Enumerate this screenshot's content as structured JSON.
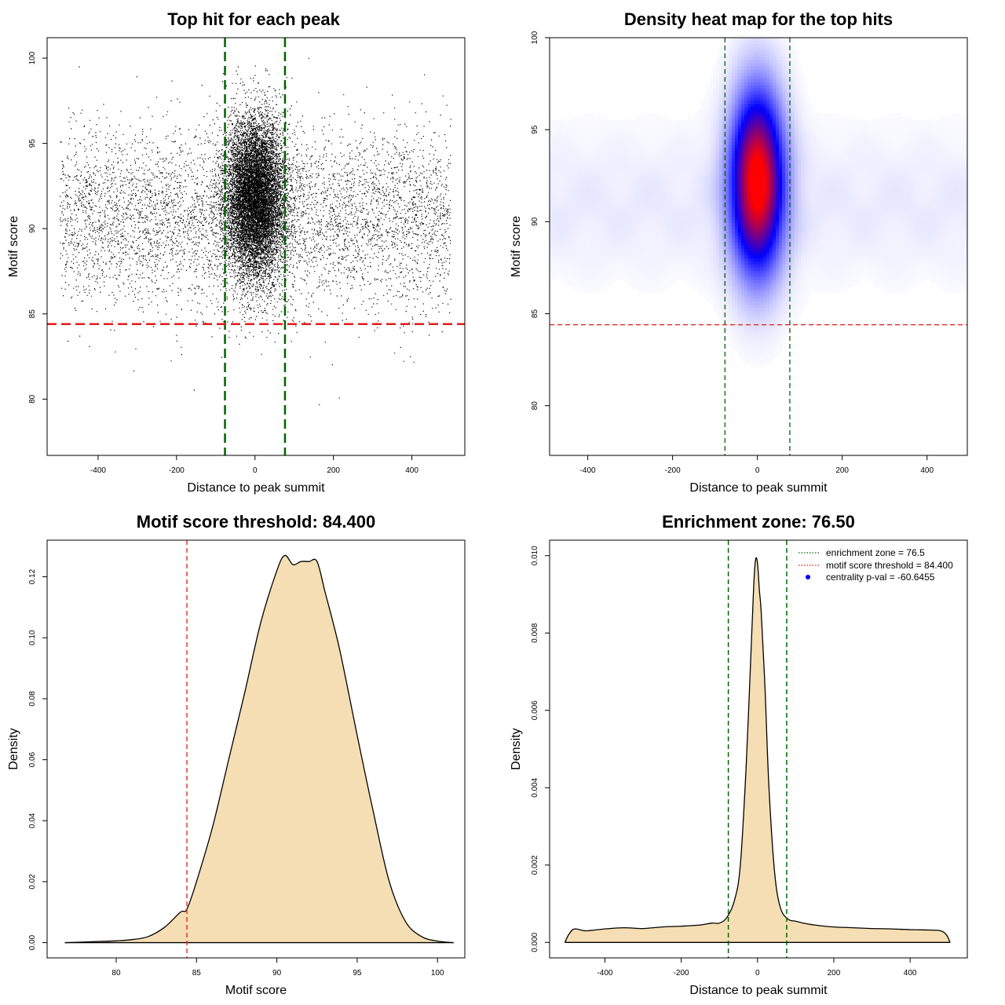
{
  "chart_data": [
    {
      "id": "scatter",
      "type": "scatter",
      "title": "Top hit for each peak",
      "xlabel": "Distance to peak summit",
      "ylabel": "Motif score",
      "xlim": [
        -530,
        535
      ],
      "ylim": [
        76.7,
        101.2
      ],
      "xticks": [
        -400,
        -200,
        0,
        200,
        400
      ],
      "yticks": [
        80,
        85,
        90,
        95,
        100
      ],
      "xtick_labels": [
        "-400",
        "-200",
        "0",
        "200",
        "400"
      ],
      "ytick_labels": [
        "80",
        "85",
        "90",
        "95",
        "100"
      ],
      "vlines": [
        -76.5,
        76.5
      ],
      "hline": 84.4,
      "points_desc": "~15000 peaks; broad uniform background from -500 to 500, dense central column within about ±60 of summit, scores mostly 84–97",
      "colors": {
        "points": "#000000",
        "vline": "#006400",
        "hline": "#e31a1c"
      }
    },
    {
      "id": "heatmap",
      "type": "heatmap",
      "title": "Density heat map for the top hits",
      "xlabel": "Distance to peak summit",
      "ylabel": "Motif score",
      "xlim": [
        -490,
        495
      ],
      "ylim": [
        77.3,
        100.0
      ],
      "xticks": [
        -400,
        -200,
        0,
        200,
        400
      ],
      "yticks": [
        80,
        85,
        90,
        95,
        100
      ],
      "xtick_labels": [
        "-400",
        "-200",
        "0",
        "200",
        "400"
      ],
      "ytick_labels": [
        "80",
        "85",
        "90",
        "95",
        "100"
      ],
      "vlines": [
        -76.5,
        76.5
      ],
      "hline": 84.4,
      "peak": {
        "x": 0,
        "y": 92.2
      },
      "color_ramp": [
        "#ffffff",
        "#0000ff",
        "#ff0000"
      ],
      "colors": {
        "vline": "#006400",
        "hline": "#e31a1c"
      }
    },
    {
      "id": "score_density",
      "type": "area",
      "title": "Motif score threshold: 84.400",
      "xlabel": "Motif score",
      "ylabel": "Density",
      "xlim": [
        75.7,
        101.7
      ],
      "ylim": [
        -0.005,
        0.132
      ],
      "xticks": [
        80,
        85,
        90,
        95,
        100
      ],
      "yticks": [
        0.0,
        0.02,
        0.04,
        0.06,
        0.08,
        0.1,
        0.12
      ],
      "xtick_labels": [
        "80",
        "85",
        "90",
        "95",
        "100"
      ],
      "ytick_labels": [
        "0.00",
        "0.02",
        "0.04",
        "0.06",
        "0.08",
        "0.10",
        "0.12"
      ],
      "x": [
        76.8,
        78,
        79,
        80,
        81,
        82,
        83,
        84,
        84.4,
        85,
        86,
        87,
        88,
        89,
        90,
        90.5,
        91,
        91.5,
        92,
        92.5,
        93,
        93.5,
        94,
        95,
        96,
        97,
        98,
        99,
        100,
        101
      ],
      "y": [
        0.0,
        0.0002,
        0.0004,
        0.0006,
        0.001,
        0.002,
        0.005,
        0.01,
        0.011,
        0.02,
        0.038,
        0.06,
        0.082,
        0.105,
        0.122,
        0.127,
        0.124,
        0.125,
        0.125,
        0.125,
        0.115,
        0.105,
        0.094,
        0.068,
        0.043,
        0.02,
        0.007,
        0.002,
        0.0005,
        0.0
      ],
      "threshold": 84.4,
      "colors": {
        "fill": "#f5deb3",
        "line": "#000000",
        "threshold": "#e31a1c"
      }
    },
    {
      "id": "distance_density",
      "type": "area",
      "title": "Enrichment zone: 76.50",
      "xlabel": "Distance to peak summit",
      "ylabel": "Density",
      "xlim": [
        -545,
        550
      ],
      "ylim": [
        -0.0004,
        0.0104
      ],
      "xticks": [
        -400,
        -200,
        0,
        200,
        400
      ],
      "yticks": [
        0.0,
        0.002,
        0.004,
        0.006,
        0.008,
        0.01
      ],
      "xtick_labels": [
        "-400",
        "-200",
        "0",
        "200",
        "400"
      ],
      "ytick_labels": [
        "0.000",
        "0.002",
        "0.004",
        "0.006",
        "0.008",
        "0.010"
      ],
      "x": [
        -505,
        -495,
        -480,
        -450,
        -400,
        -350,
        -300,
        -250,
        -200,
        -150,
        -120,
        -100,
        -80,
        -60,
        -45,
        -30,
        -20,
        -10,
        -5,
        0,
        5,
        10,
        20,
        30,
        45,
        60,
        80,
        100,
        120,
        150,
        200,
        250,
        300,
        350,
        400,
        450,
        480,
        495,
        505
      ],
      "y": [
        0.0,
        0.0002,
        0.00035,
        0.0003,
        0.00035,
        0.00038,
        0.00036,
        0.0004,
        0.00042,
        0.00045,
        0.0005,
        0.0005,
        0.00065,
        0.0011,
        0.002,
        0.0045,
        0.0068,
        0.0092,
        0.0099,
        0.0098,
        0.0091,
        0.0085,
        0.0065,
        0.004,
        0.0018,
        0.0009,
        0.0006,
        0.00055,
        0.0005,
        0.00045,
        0.0004,
        0.00038,
        0.00036,
        0.00035,
        0.00033,
        0.00032,
        0.0003,
        0.0002,
        0.0
      ],
      "vlines": [
        -76.5,
        76.5
      ],
      "legend": {
        "position": "top-right",
        "entries": [
          {
            "label": "enrichment zone = 76.5",
            "style": "dotted-line",
            "color": "#006400"
          },
          {
            "label": "motif score threshold = 84.400",
            "style": "dotted-line",
            "color": "#e31a1c"
          },
          {
            "label": "centrality p-val = -60.6455",
            "style": "point",
            "color": "#0000ff"
          }
        ]
      },
      "colors": {
        "fill": "#f5deb3",
        "line": "#000000",
        "vline": "#006400"
      }
    }
  ]
}
